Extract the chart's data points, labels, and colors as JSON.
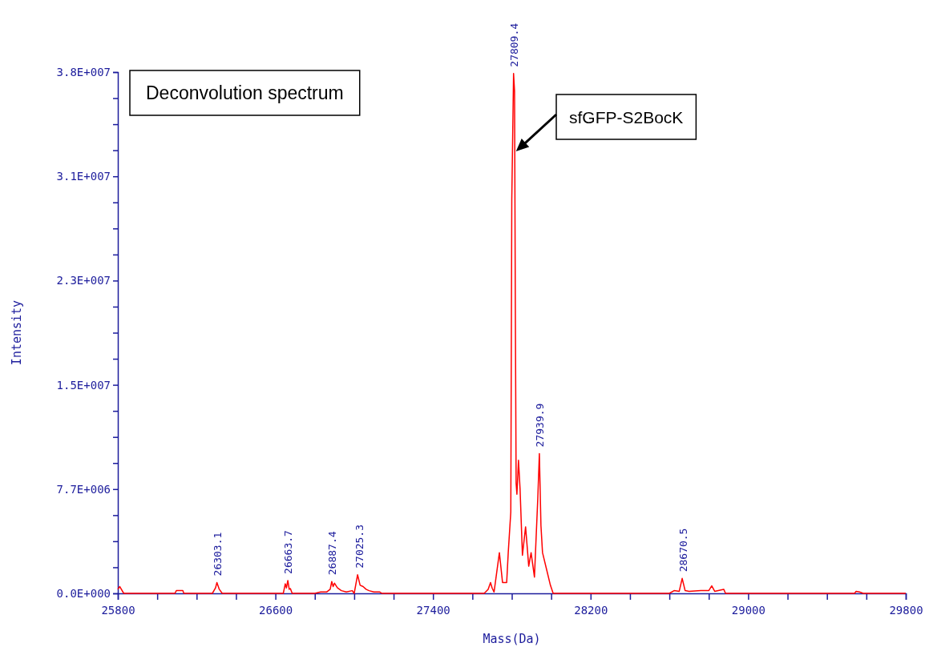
{
  "chart_data": {
    "type": "line",
    "title": "Deconvolution spectrum",
    "xlabel": "Mass(Da)",
    "ylabel": "Intensity",
    "series": [
      {
        "color": "#ff0000",
        "x": [
          25800,
          25810,
          25830,
          26090,
          26097,
          26130,
          26135,
          26280,
          26296,
          26303,
          26315,
          26330,
          26560,
          26640,
          26650,
          26656,
          26663,
          26670,
          26676,
          26685,
          26700,
          26800,
          26830,
          26860,
          26878,
          26886,
          26893,
          26900,
          26915,
          26935,
          26960,
          26990,
          27000,
          27017,
          27030,
          27045,
          27060,
          27075,
          27100,
          27130,
          27140,
          27660,
          27680,
          27692,
          27700,
          27710,
          27737,
          27753,
          27774,
          27782,
          27795,
          27800,
          27809,
          27814,
          27818,
          27822,
          27826,
          27834,
          27842,
          27854,
          27870,
          27886,
          27898,
          27915,
          27932,
          27940,
          27948,
          27956,
          27976,
          27996,
          28010,
          28600,
          28624,
          28650,
          28665,
          28680,
          28700,
          28760,
          28800,
          28815,
          28830,
          28876,
          28885,
          29540,
          29548,
          29565,
          29584,
          29800
        ],
        "values": [
          300000,
          500000,
          0,
          0,
          200000,
          200000,
          0,
          0,
          400000,
          800000,
          300000,
          0,
          0,
          0,
          700000,
          400000,
          950000,
          300000,
          350000,
          0,
          0,
          0,
          100000,
          100000,
          300000,
          870000,
          500000,
          750000,
          400000,
          200000,
          100000,
          200000,
          0,
          1370000,
          600000,
          500000,
          300000,
          200000,
          100000,
          100000,
          0,
          0,
          300000,
          800000,
          400000,
          100000,
          3000000,
          800000,
          800000,
          3000000,
          6000000,
          29000000,
          38300000,
          37000000,
          21000000,
          8100000,
          7300000,
          9800000,
          7700000,
          2800000,
          4900000,
          2000000,
          3000000,
          1200000,
          7000000,
          10300000,
          5000000,
          3000000,
          1800000,
          600000,
          0,
          0,
          200000,
          150000,
          1100000,
          200000,
          150000,
          200000,
          200000,
          550000,
          150000,
          300000,
          0,
          0,
          150000,
          100000,
          0,
          0
        ]
      }
    ],
    "xlim": [
      25800,
      29800
    ],
    "xticks": [
      25800,
      {
        "value": 26000,
        "label": null
      },
      {
        "value": 26200,
        "label": null
      },
      {
        "value": 26400,
        "label": null
      },
      26600,
      {
        "value": 26800,
        "label": null
      },
      {
        "value": 27000,
        "label": null
      },
      {
        "value": 27200,
        "label": null
      },
      27400,
      {
        "value": 27600,
        "label": null
      },
      {
        "value": 27800,
        "label": null
      },
      {
        "value": 28000,
        "label": null
      },
      28200,
      {
        "value": 28400,
        "label": null
      },
      {
        "value": 28600,
        "label": null
      },
      {
        "value": 28800,
        "label": null
      },
      29000,
      {
        "value": 29200,
        "label": null
      },
      {
        "value": 29400,
        "label": null
      },
      {
        "value": 29600,
        "label": null
      },
      29800
    ],
    "ylim": [
      0,
      38400000
    ],
    "yticks": [
      {
        "value": 0,
        "label": "0.0E+000"
      },
      {
        "value": 1920000,
        "label": null
      },
      {
        "value": 3840000,
        "label": null
      },
      {
        "value": 5760000,
        "label": null
      },
      {
        "value": 7680000,
        "label": "7.7E+006"
      },
      {
        "value": 9600000,
        "label": null
      },
      {
        "value": 11520000,
        "label": null
      },
      {
        "value": 13440000,
        "label": null
      },
      {
        "value": 15360000,
        "label": "1.5E+007"
      },
      {
        "value": 17280000,
        "label": null
      },
      {
        "value": 19200000,
        "label": null
      },
      {
        "value": 21120000,
        "label": null
      },
      {
        "value": 23040000,
        "label": "2.3E+007"
      },
      {
        "value": 24960000,
        "label": null
      },
      {
        "value": 26880000,
        "label": null
      },
      {
        "value": 28800000,
        "label": null
      },
      {
        "value": 30720000,
        "label": "3.1E+007"
      },
      {
        "value": 32640000,
        "label": null
      },
      {
        "value": 34560000,
        "label": null
      },
      {
        "value": 36480000,
        "label": null
      },
      {
        "value": 38400000,
        "label": "3.8E+007"
      }
    ],
    "annotations": [
      {
        "text": "26303.1",
        "x": 26303.1,
        "y": 800000
      },
      {
        "text": "26663.7",
        "x": 26663.7,
        "y": 950000
      },
      {
        "text": "26887.4",
        "x": 26887.4,
        "y": 870000
      },
      {
        "text": "27025.3",
        "x": 27025.3,
        "y": 1370000
      },
      {
        "text": "27809.4",
        "x": 27809.4,
        "y": 38300000
      },
      {
        "text": "27939.9",
        "x": 27939.9,
        "y": 10300000
      },
      {
        "text": "28670.5",
        "x": 28670.5,
        "y": 1100000
      },
      "sfGFP-S2BocK"
    ],
    "grid": false,
    "marker": "none",
    "line_style": "solid"
  }
}
